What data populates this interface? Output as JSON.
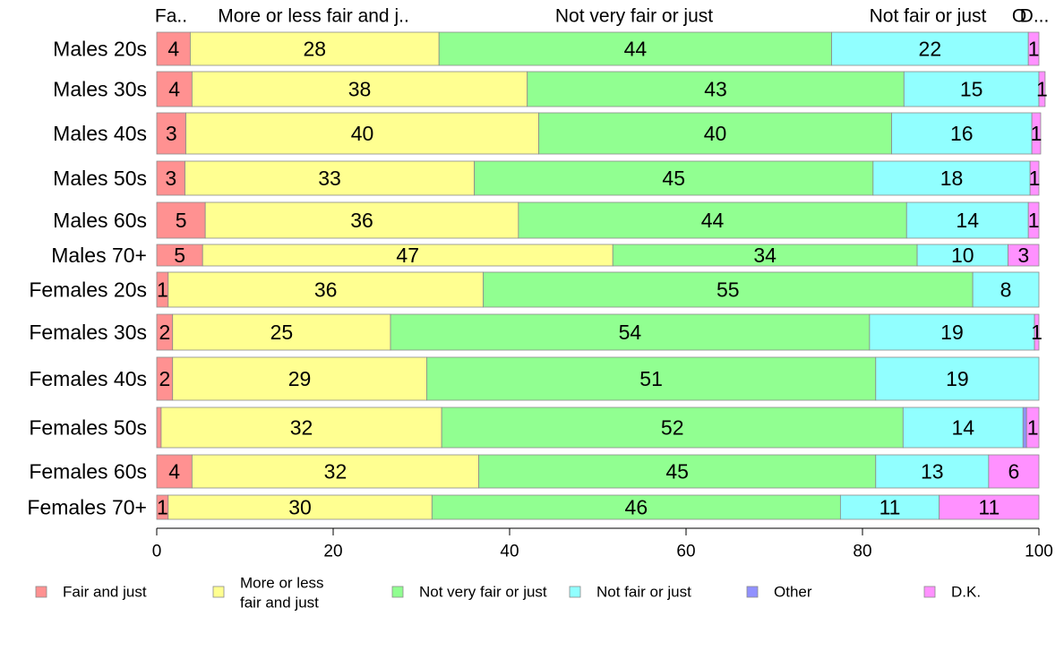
{
  "chart_data": {
    "type": "bar",
    "orientation": "horizontal",
    "stacked": true,
    "xlim": [
      0,
      100
    ],
    "xticks": [
      0,
      20,
      40,
      60,
      80,
      100
    ],
    "grid": false,
    "legend_position": "bottom",
    "top_labels": [
      "Fa..",
      "More or less fair and j..",
      "Not very fair or just",
      "Not fair or just",
      "O",
      "D..."
    ],
    "categories": [
      "Males 20s",
      "Males 30s",
      "Males 40s",
      "Males 50s",
      "Males 60s",
      "Males 70+",
      "Females 20s",
      "Females 30s",
      "Females 40s",
      "Females 50s",
      "Females 60s",
      "Females 70+"
    ],
    "series": [
      {
        "name": "Fair and just",
        "color": "#ff9191",
        "values": [
          3.8,
          4.0,
          3.3,
          3.2,
          5.5,
          5.2,
          1.3,
          1.8,
          1.8,
          0.5,
          4.0,
          1.3
        ]
      },
      {
        "name": "More or less fair and just",
        "color": "#ffff91",
        "values": [
          28.2,
          38.0,
          40.0,
          32.8,
          35.5,
          46.5,
          35.7,
          24.7,
          28.8,
          31.8,
          32.5,
          29.9
        ]
      },
      {
        "name": "Not very fair or just",
        "color": "#91ff91",
        "values": [
          44.5,
          42.7,
          40.0,
          45.2,
          44.0,
          34.5,
          55.5,
          54.3,
          50.9,
          52.3,
          45.0,
          46.3
        ]
      },
      {
        "name": "Not fair or just",
        "color": "#91ffff",
        "values": [
          22.3,
          15.3,
          15.9,
          17.8,
          13.8,
          10.3,
          7.5,
          18.7,
          18.5,
          13.6,
          12.8,
          11.2
        ]
      },
      {
        "name": "Other",
        "color": "#9191ff",
        "values": [
          0,
          0,
          0,
          0,
          0,
          0,
          0,
          0,
          0,
          0.4,
          0,
          0
        ]
      },
      {
        "name": "D.K.",
        "color": "#ff91ff",
        "values": [
          1.2,
          0.7,
          1.0,
          1.0,
          1.2,
          3.5,
          0,
          0.5,
          0,
          1.4,
          5.7,
          11.3
        ]
      }
    ],
    "data_labels": [
      [
        "4",
        "28",
        "44",
        "22",
        "",
        "1"
      ],
      [
        "4",
        "38",
        "43",
        "15",
        "",
        "1"
      ],
      [
        "3",
        "40",
        "40",
        "16",
        "",
        "1"
      ],
      [
        "3",
        "33",
        "45",
        "18",
        "",
        "1"
      ],
      [
        "5",
        "36",
        "44",
        "14",
        "",
        "1"
      ],
      [
        "5",
        "47",
        "34",
        "10",
        "",
        "3"
      ],
      [
        "1",
        "36",
        "55",
        "8",
        "",
        ""
      ],
      [
        "2",
        "25",
        "54",
        "19",
        "",
        "1"
      ],
      [
        "2",
        "29",
        "51",
        "19",
        "",
        ""
      ],
      [
        "",
        "32",
        "52",
        "14",
        "",
        "1"
      ],
      [
        "4",
        "32",
        "45",
        "13",
        "",
        "6"
      ],
      [
        "1",
        "30",
        "46",
        "11",
        "",
        "11"
      ]
    ],
    "legend": [
      {
        "label": "Fair and just",
        "color": "#ff9191"
      },
      {
        "label": "More or less\nfair and just",
        "color": "#ffff91"
      },
      {
        "label": "Not very fair or just",
        "color": "#91ff91"
      },
      {
        "label": "Not fair or just",
        "color": "#91ffff"
      },
      {
        "label": "Other",
        "color": "#9191ff"
      },
      {
        "label": "D.K.",
        "color": "#ff91ff"
      }
    ]
  }
}
